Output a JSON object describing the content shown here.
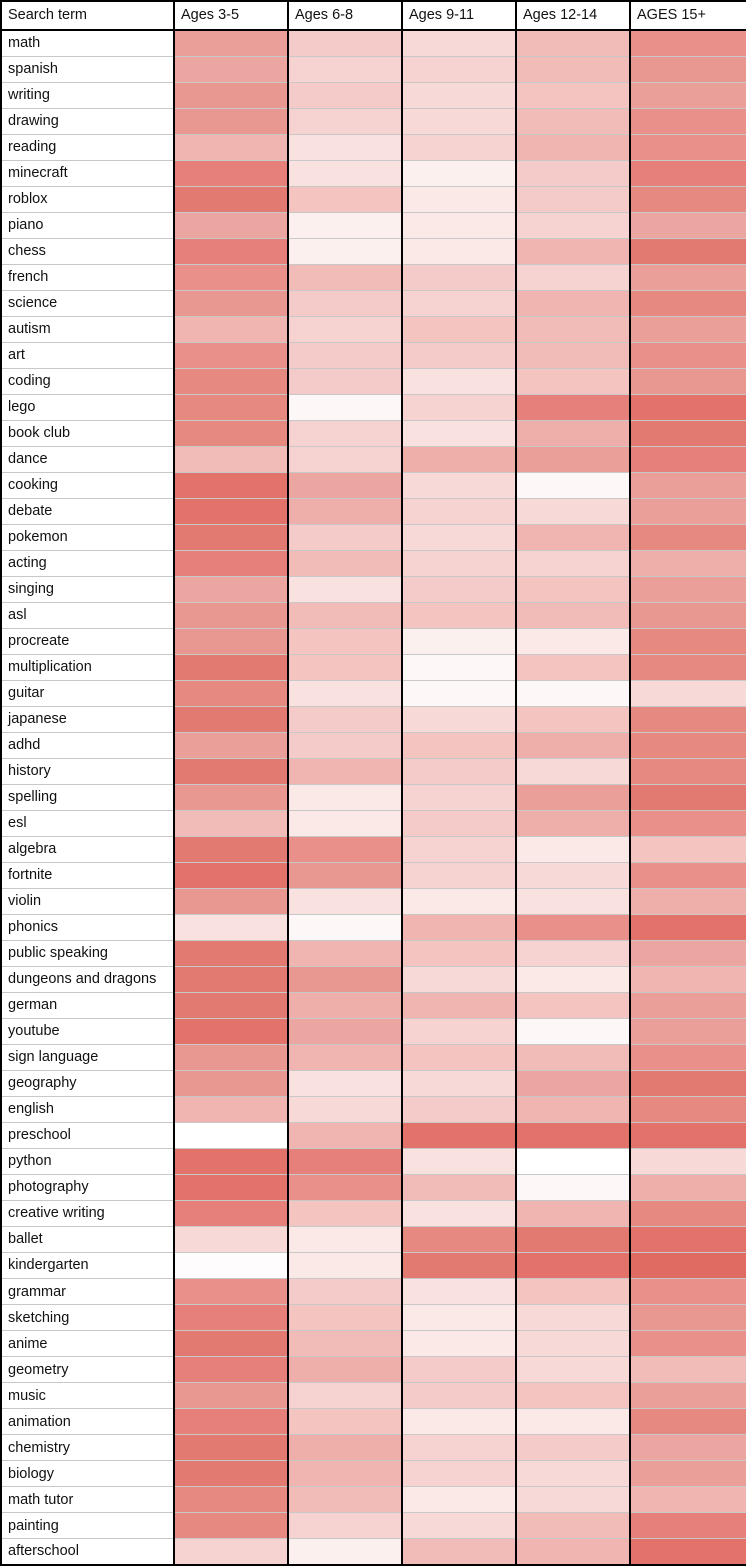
{
  "chart_data": {
    "type": "heatmap",
    "columns": [
      "Search term",
      "Ages 3-5",
      "Ages 6-8",
      "Ages 9-11",
      "Ages 12-14",
      "AGES 15+"
    ],
    "color_low": "#ffffff",
    "color_high": "#e06b62",
    "value_scale": [
      0,
      1
    ],
    "rows": [
      {
        "term": "math",
        "values": [
          0.65,
          0.35,
          0.25,
          0.45,
          0.75
        ]
      },
      {
        "term": "spanish",
        "values": [
          0.6,
          0.3,
          0.3,
          0.45,
          0.7
        ]
      },
      {
        "term": "writing",
        "values": [
          0.7,
          0.35,
          0.25,
          0.4,
          0.65
        ]
      },
      {
        "term": "drawing",
        "values": [
          0.7,
          0.3,
          0.25,
          0.45,
          0.75
        ]
      },
      {
        "term": "reading",
        "values": [
          0.5,
          0.2,
          0.3,
          0.5,
          0.75
        ]
      },
      {
        "term": "minecraft",
        "values": [
          0.85,
          0.2,
          0.1,
          0.35,
          0.85
        ]
      },
      {
        "term": "roblox",
        "values": [
          0.9,
          0.4,
          0.15,
          0.35,
          0.8
        ]
      },
      {
        "term": "piano",
        "values": [
          0.6,
          0.1,
          0.15,
          0.3,
          0.6
        ]
      },
      {
        "term": "chess",
        "values": [
          0.85,
          0.1,
          0.15,
          0.5,
          0.9
        ]
      },
      {
        "term": "french",
        "values": [
          0.75,
          0.45,
          0.35,
          0.3,
          0.65
        ]
      },
      {
        "term": "science",
        "values": [
          0.7,
          0.35,
          0.3,
          0.5,
          0.8
        ]
      },
      {
        "term": "autism",
        "values": [
          0.5,
          0.3,
          0.4,
          0.45,
          0.65
        ]
      },
      {
        "term": "art",
        "values": [
          0.75,
          0.35,
          0.35,
          0.45,
          0.75
        ]
      },
      {
        "term": "coding",
        "values": [
          0.8,
          0.35,
          0.2,
          0.4,
          0.7
        ]
      },
      {
        "term": "lego",
        "values": [
          0.8,
          0.05,
          0.3,
          0.85,
          0.95
        ]
      },
      {
        "term": "book club",
        "values": [
          0.8,
          0.3,
          0.2,
          0.55,
          0.9
        ]
      },
      {
        "term": "dance",
        "values": [
          0.45,
          0.3,
          0.55,
          0.65,
          0.85
        ]
      },
      {
        "term": "cooking",
        "values": [
          0.95,
          0.6,
          0.25,
          0.05,
          0.65
        ]
      },
      {
        "term": "debate",
        "values": [
          0.95,
          0.55,
          0.3,
          0.25,
          0.65
        ]
      },
      {
        "term": "pokemon",
        "values": [
          0.9,
          0.35,
          0.25,
          0.5,
          0.8
        ]
      },
      {
        "term": "acting",
        "values": [
          0.85,
          0.45,
          0.3,
          0.3,
          0.55
        ]
      },
      {
        "term": "singing",
        "values": [
          0.6,
          0.2,
          0.35,
          0.4,
          0.65
        ]
      },
      {
        "term": "asl",
        "values": [
          0.7,
          0.45,
          0.4,
          0.45,
          0.7
        ]
      },
      {
        "term": "procreate",
        "values": [
          0.7,
          0.4,
          0.1,
          0.15,
          0.8
        ]
      },
      {
        "term": "multiplication",
        "values": [
          0.9,
          0.4,
          0.05,
          0.4,
          0.8
        ]
      },
      {
        "term": "guitar",
        "values": [
          0.8,
          0.2,
          0.05,
          0.05,
          0.25
        ]
      },
      {
        "term": "japanese",
        "values": [
          0.9,
          0.35,
          0.25,
          0.4,
          0.8
        ]
      },
      {
        "term": "adhd",
        "values": [
          0.65,
          0.35,
          0.4,
          0.55,
          0.8
        ]
      },
      {
        "term": "history",
        "values": [
          0.9,
          0.5,
          0.35,
          0.25,
          0.8
        ]
      },
      {
        "term": "spelling",
        "values": [
          0.7,
          0.15,
          0.3,
          0.65,
          0.9
        ]
      },
      {
        "term": "esl",
        "values": [
          0.45,
          0.15,
          0.35,
          0.55,
          0.75
        ]
      },
      {
        "term": "algebra",
        "values": [
          0.9,
          0.75,
          0.3,
          0.15,
          0.4
        ]
      },
      {
        "term": "fortnite",
        "values": [
          0.95,
          0.7,
          0.3,
          0.25,
          0.75
        ]
      },
      {
        "term": "violin",
        "values": [
          0.7,
          0.2,
          0.15,
          0.2,
          0.55
        ]
      },
      {
        "term": "phonics",
        "values": [
          0.2,
          0.05,
          0.5,
          0.75,
          0.95
        ]
      },
      {
        "term": "public speaking",
        "values": [
          0.9,
          0.5,
          0.4,
          0.3,
          0.6
        ]
      },
      {
        "term": "dungeons and dragons",
        "values": [
          0.9,
          0.7,
          0.25,
          0.15,
          0.5
        ]
      },
      {
        "term": "german",
        "values": [
          0.9,
          0.55,
          0.5,
          0.4,
          0.65
        ]
      },
      {
        "term": "youtube",
        "values": [
          0.95,
          0.6,
          0.3,
          0.05,
          0.65
        ]
      },
      {
        "term": "sign language",
        "values": [
          0.7,
          0.5,
          0.4,
          0.45,
          0.75
        ]
      },
      {
        "term": "geography",
        "values": [
          0.7,
          0.2,
          0.25,
          0.6,
          0.9
        ]
      },
      {
        "term": "english",
        "values": [
          0.5,
          0.25,
          0.35,
          0.5,
          0.8
        ]
      },
      {
        "term": "preschool",
        "values": [
          0.0,
          0.5,
          0.95,
          0.95,
          0.95
        ]
      },
      {
        "term": "python",
        "values": [
          0.95,
          0.85,
          0.2,
          0.0,
          0.25
        ]
      },
      {
        "term": "photography",
        "values": [
          0.95,
          0.75,
          0.45,
          0.05,
          0.55
        ]
      },
      {
        "term": "creative writing",
        "values": [
          0.85,
          0.4,
          0.2,
          0.5,
          0.8
        ]
      },
      {
        "term": "ballet",
        "values": [
          0.25,
          0.15,
          0.8,
          0.9,
          0.95
        ]
      },
      {
        "term": "kindergarten",
        "values": [
          0.02,
          0.15,
          0.9,
          0.95,
          1.0
        ]
      },
      {
        "term": "grammar",
        "values": [
          0.75,
          0.35,
          0.2,
          0.4,
          0.75
        ]
      },
      {
        "term": "sketching",
        "values": [
          0.85,
          0.4,
          0.15,
          0.25,
          0.7
        ]
      },
      {
        "term": "anime",
        "values": [
          0.9,
          0.45,
          0.15,
          0.25,
          0.75
        ]
      },
      {
        "term": "geometry",
        "values": [
          0.85,
          0.55,
          0.35,
          0.25,
          0.45
        ]
      },
      {
        "term": "music",
        "values": [
          0.7,
          0.3,
          0.35,
          0.4,
          0.65
        ]
      },
      {
        "term": "animation",
        "values": [
          0.85,
          0.4,
          0.15,
          0.15,
          0.8
        ]
      },
      {
        "term": "chemistry",
        "values": [
          0.9,
          0.55,
          0.3,
          0.35,
          0.6
        ]
      },
      {
        "term": "biology",
        "values": [
          0.9,
          0.5,
          0.3,
          0.25,
          0.65
        ]
      },
      {
        "term": "math tutor",
        "values": [
          0.8,
          0.45,
          0.15,
          0.25,
          0.5
        ]
      },
      {
        "term": "painting",
        "values": [
          0.8,
          0.3,
          0.25,
          0.45,
          0.85
        ]
      },
      {
        "term": "afterschool",
        "values": [
          0.3,
          0.1,
          0.45,
          0.5,
          0.95
        ]
      }
    ]
  }
}
